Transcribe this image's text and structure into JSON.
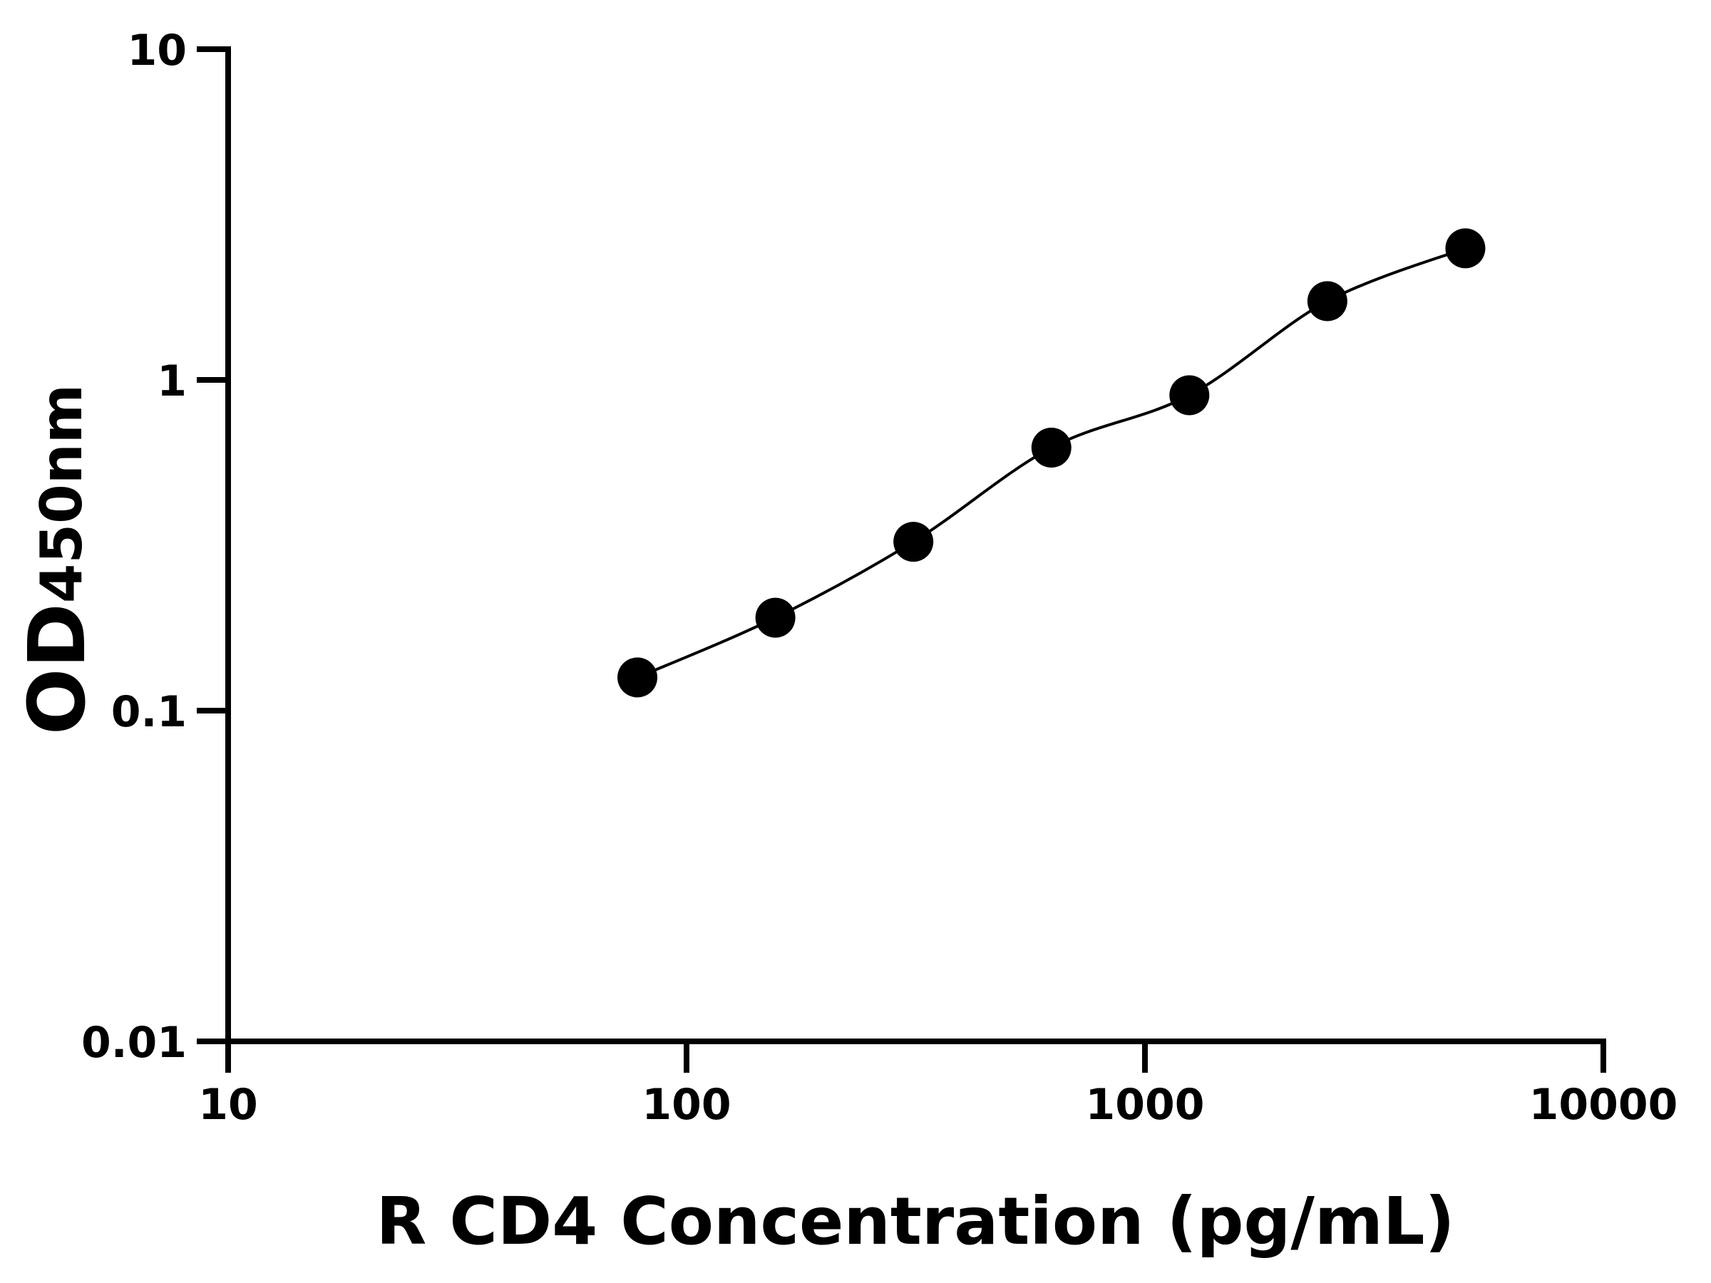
{
  "chart_data": {
    "type": "scatter",
    "xlabel": "R CD4 Concentration (pg/mL)",
    "ylabel": "OD",
    "ylabel_subscript": "450nm",
    "x": [
      78.125,
      156.25,
      312.5,
      625,
      1250,
      2500,
      5000
    ],
    "values": [
      0.126,
      0.191,
      0.324,
      0.624,
      0.899,
      1.73,
      2.5
    ],
    "color": "#000000",
    "xscale": "log",
    "yscale": "log",
    "xlim": [
      10,
      10000
    ],
    "ylim": [
      0.01,
      10
    ],
    "xticks": [
      10,
      100,
      1000,
      10000
    ],
    "yticks": [
      0.01,
      0.1,
      1,
      10
    ],
    "fit_curve": true
  }
}
